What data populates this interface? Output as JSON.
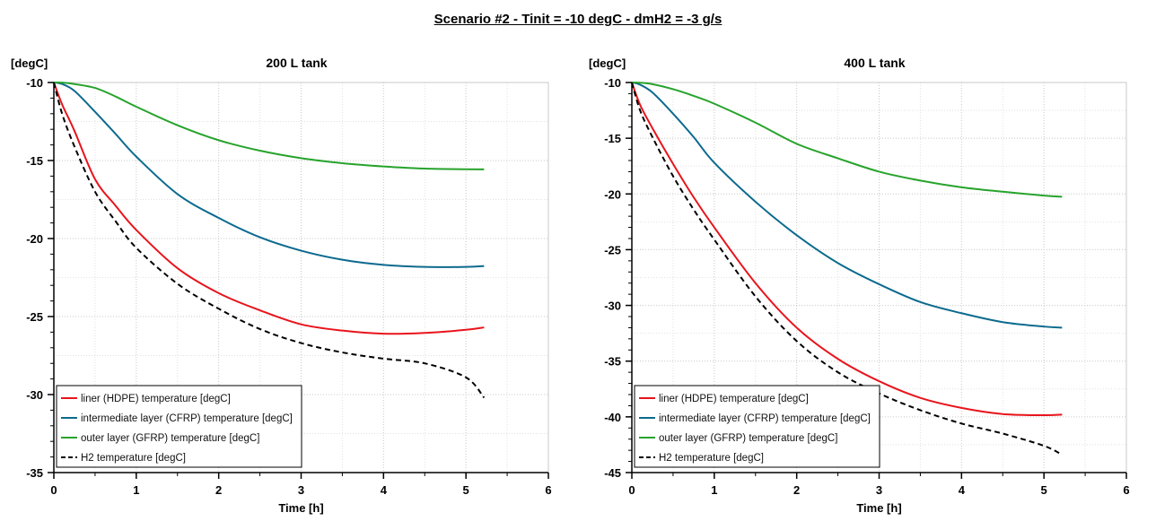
{
  "page_title": "Scenario #2 - Tinit = -10 degC - dmH2 = -3 g/s",
  "colors": {
    "liner": "#e8141c",
    "intermediate": "#0c6a8e",
    "outer": "#27a32c",
    "h2": "#000000"
  },
  "chart_data": [
    {
      "type": "line",
      "title": "200 L tank",
      "xlabel": "Time [h]",
      "ylabel": "[degC]",
      "xlim": [
        0,
        6
      ],
      "ylim": [
        -35,
        -10
      ],
      "xticks": [
        0,
        1,
        2,
        3,
        4,
        5,
        6
      ],
      "yticks": [
        -10,
        -15,
        -20,
        -25,
        -30,
        -35
      ],
      "grid": true,
      "legend_position": "bottom-left",
      "x": [
        0,
        0.1,
        0.25,
        0.5,
        0.75,
        1,
        1.5,
        2,
        2.5,
        3,
        3.5,
        4,
        4.5,
        5,
        5.22
      ],
      "series": [
        {
          "name": "liner (HDPE) temperature [degC]",
          "key": "liner",
          "dash": false,
          "values": [
            -10,
            -11.4,
            -13.1,
            -16.2,
            -17.9,
            -19.45,
            -21.9,
            -23.5,
            -24.6,
            -25.5,
            -25.9,
            -26.1,
            -26.05,
            -25.85,
            -25.7
          ]
        },
        {
          "name": "intermediate layer (CFRP) temperature [degC]",
          "key": "intermediate",
          "dash": false,
          "values": [
            -10,
            -10.1,
            -10.54,
            -11.88,
            -13.3,
            -14.75,
            -17.15,
            -18.68,
            -19.92,
            -20.78,
            -21.36,
            -21.69,
            -21.82,
            -21.82,
            -21.76
          ]
        },
        {
          "name": "outer layer (GFRP) temperature [degC]",
          "key": "outer",
          "dash": false,
          "values": [
            -10,
            -10.01,
            -10.1,
            -10.35,
            -10.9,
            -11.55,
            -12.74,
            -13.7,
            -14.37,
            -14.85,
            -15.17,
            -15.38,
            -15.52,
            -15.56,
            -15.57
          ]
        },
        {
          "name": "H2 temperature [degC]",
          "key": "h2",
          "dash": true,
          "values": [
            -10,
            -12.0,
            -14.1,
            -17.0,
            -18.9,
            -20.6,
            -22.9,
            -24.5,
            -25.8,
            -26.7,
            -27.3,
            -27.7,
            -28.0,
            -28.9,
            -30.2
          ]
        }
      ]
    },
    {
      "type": "line",
      "title": "400 L tank",
      "xlabel": "Time [h]",
      "ylabel": "[degC]",
      "xlim": [
        0,
        6
      ],
      "ylim": [
        -45,
        -10
      ],
      "xticks": [
        0,
        1,
        2,
        3,
        4,
        5,
        6
      ],
      "yticks": [
        -10,
        -15,
        -20,
        -25,
        -30,
        -35,
        -40,
        -45
      ],
      "grid": true,
      "legend_position": "bottom-left",
      "x": [
        0,
        0.1,
        0.25,
        0.5,
        0.75,
        1,
        1.5,
        2,
        2.5,
        3,
        3.5,
        4,
        4.5,
        5,
        5.22
      ],
      "series": [
        {
          "name": "liner (HDPE) temperature [degC]",
          "key": "liner",
          "dash": false,
          "values": [
            -10,
            -12.0,
            -14.1,
            -17.3,
            -20.3,
            -23.0,
            -28.0,
            -32.0,
            -34.8,
            -36.8,
            -38.3,
            -39.2,
            -39.75,
            -39.85,
            -39.8
          ]
        },
        {
          "name": "intermediate layer (CFRP) temperature [degC]",
          "key": "intermediate",
          "dash": false,
          "values": [
            -10,
            -10.2,
            -10.9,
            -12.8,
            -14.9,
            -17.2,
            -20.7,
            -23.7,
            -26.2,
            -28.1,
            -29.7,
            -30.7,
            -31.5,
            -31.9,
            -32.0
          ]
        },
        {
          "name": "outer layer (GFRP) temperature [degC]",
          "key": "outer",
          "dash": false,
          "values": [
            -10,
            -10.02,
            -10.15,
            -10.6,
            -11.2,
            -11.9,
            -13.6,
            -15.5,
            -16.8,
            -18.0,
            -18.8,
            -19.4,
            -19.8,
            -20.15,
            -20.25
          ]
        },
        {
          "name": "H2 temperature [degC]",
          "key": "h2",
          "dash": true,
          "values": [
            -10,
            -12.5,
            -14.9,
            -18.4,
            -21.4,
            -24.1,
            -29.2,
            -33.2,
            -36.0,
            -37.9,
            -39.4,
            -40.6,
            -41.5,
            -42.6,
            -43.4
          ]
        }
      ]
    }
  ]
}
